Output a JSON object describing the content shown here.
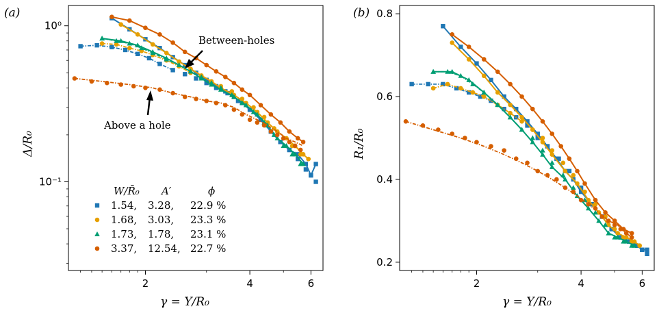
{
  "panel_a_label": "(a)",
  "panel_b_label": "(b)",
  "legend_header": {
    "w": "W/R̄₀",
    "a": "A′",
    "phi": "ϕ"
  },
  "annotations": {
    "between": "Between-holes",
    "above": "Above a hole"
  },
  "chart_data": [
    {
      "type": "scatter",
      "panel": "(a)",
      "xlabel": "γ = Y/R₀",
      "ylabel": "Δ/R₀",
      "xscale": "log",
      "yscale": "log",
      "xlim": [
        1.2,
        6.5
      ],
      "ylim": [
        0.027,
        1.35
      ],
      "xticks": [
        {
          "v": 2,
          "label": "2"
        },
        {
          "v": 4,
          "label": "4"
        },
        {
          "v": 6,
          "label": "6"
        }
      ],
      "yticks": [
        {
          "v": 1,
          "label": "10⁰"
        },
        {
          "v": 0.1,
          "label": "10⁻¹"
        }
      ],
      "annotations": [
        {
          "text": "Between-holes",
          "x": 2.6,
          "y": 0.62
        },
        {
          "text": "Above a hole",
          "x": 2.05,
          "y": 0.39
        }
      ],
      "legend_position": "lower-left",
      "series": [
        {
          "name": "1.54, 3.28, 22.9 %",
          "color": "#1f77b4",
          "marker": "square",
          "x": [
            1.3,
            1.45,
            1.6,
            1.75,
            1.9,
            2.05,
            2.2,
            2.4,
            2.6,
            2.8,
            3.0,
            3.2,
            3.45,
            3.7,
            4.0,
            4.3,
            4.6,
            4.9,
            5.2,
            5.5,
            5.8,
            6.0,
            6.2
          ],
          "y": [
            0.74,
            0.75,
            0.73,
            0.7,
            0.66,
            0.62,
            0.57,
            0.52,
            0.49,
            0.46,
            0.43,
            0.4,
            0.37,
            0.33,
            0.29,
            0.25,
            0.21,
            0.18,
            0.16,
            0.14,
            0.12,
            0.11,
            0.1
          ],
          "line_x": [
            1.6,
            1.8,
            2.0,
            2.2,
            2.4,
            2.6,
            2.8,
            3.0,
            3.2,
            3.4,
            3.6,
            3.8,
            4.0,
            4.3,
            4.6,
            4.9,
            5.2,
            5.5,
            5.8,
            6.0,
            6.2
          ],
          "line_y": [
            1.12,
            0.95,
            0.82,
            0.72,
            0.63,
            0.56,
            0.5,
            0.45,
            0.41,
            0.38,
            0.35,
            0.32,
            0.29,
            0.25,
            0.21,
            0.18,
            0.16,
            0.15,
            0.13,
            0.11,
            0.13
          ]
        },
        {
          "name": "1.68, 3.03, 23.3 %",
          "color": "#e69f00",
          "marker": "circle",
          "x": [
            1.5,
            1.65,
            1.8,
            1.95,
            2.1,
            2.3,
            2.5,
            2.7,
            2.9,
            3.1,
            3.3,
            3.55,
            3.8,
            4.1,
            4.4,
            4.7,
            5.0,
            5.3,
            5.6,
            5.9
          ],
          "y": [
            0.77,
            0.76,
            0.72,
            0.69,
            0.65,
            0.6,
            0.55,
            0.5,
            0.47,
            0.44,
            0.41,
            0.38,
            0.34,
            0.3,
            0.26,
            0.22,
            0.19,
            0.17,
            0.15,
            0.14
          ],
          "line_x": [
            1.7,
            1.9,
            2.1,
            2.3,
            2.5,
            2.7,
            2.9,
            3.1,
            3.3,
            3.6,
            3.9,
            4.2,
            4.5,
            4.8,
            5.1,
            5.4,
            5.7,
            5.9
          ],
          "line_y": [
            1.02,
            0.88,
            0.76,
            0.67,
            0.59,
            0.53,
            0.48,
            0.44,
            0.4,
            0.36,
            0.32,
            0.28,
            0.24,
            0.21,
            0.19,
            0.17,
            0.15,
            0.14
          ]
        },
        {
          "name": "1.73, 1.78, 23.1 %",
          "color": "#009e73",
          "marker": "triangle",
          "x": [
            1.5,
            1.65,
            1.8,
            1.95,
            2.1,
            2.3,
            2.5,
            2.7,
            2.9,
            3.1,
            3.3,
            3.55,
            3.8,
            4.1,
            4.4,
            4.7,
            5.0,
            5.3,
            5.6
          ],
          "y": [
            0.83,
            0.8,
            0.77,
            0.72,
            0.67,
            0.61,
            0.56,
            0.51,
            0.47,
            0.43,
            0.4,
            0.36,
            0.32,
            0.28,
            0.24,
            0.2,
            0.17,
            0.15,
            0.13
          ],
          "line_x": [
            1.5,
            1.7,
            1.9,
            2.1,
            2.3,
            2.5,
            2.7,
            2.9,
            3.1,
            3.3,
            3.6,
            3.9,
            4.2,
            4.5,
            4.8,
            5.1,
            5.4,
            5.7
          ],
          "line_y": [
            0.83,
            0.8,
            0.75,
            0.68,
            0.62,
            0.56,
            0.51,
            0.46,
            0.42,
            0.39,
            0.35,
            0.31,
            0.27,
            0.23,
            0.19,
            0.17,
            0.15,
            0.13
          ]
        },
        {
          "name": "3.37, 12.54, 22.7 %",
          "color": "#d55e00",
          "marker": "circle",
          "x": [
            1.25,
            1.4,
            1.55,
            1.7,
            1.85,
            2.0,
            2.2,
            2.4,
            2.6,
            2.8,
            3.0,
            3.2,
            3.4,
            3.6,
            3.8,
            4.0,
            4.2,
            4.4,
            4.6,
            4.8,
            5.0,
            5.2,
            5.4,
            5.6
          ],
          "y": [
            0.46,
            0.44,
            0.43,
            0.42,
            0.41,
            0.4,
            0.39,
            0.37,
            0.35,
            0.34,
            0.33,
            0.32,
            0.31,
            0.29,
            0.27,
            0.25,
            0.24,
            0.23,
            0.21,
            0.2,
            0.19,
            0.18,
            0.17,
            0.16
          ],
          "line_x": [
            1.6,
            1.8,
            2.0,
            2.2,
            2.4,
            2.6,
            2.8,
            3.0,
            3.2,
            3.4,
            3.6,
            3.8,
            4.0,
            4.3,
            4.6,
            4.9,
            5.2,
            5.5,
            5.7
          ],
          "line_y": [
            1.14,
            1.08,
            0.97,
            0.88,
            0.78,
            0.68,
            0.62,
            0.56,
            0.51,
            0.47,
            0.43,
            0.39,
            0.36,
            0.31,
            0.27,
            0.24,
            0.21,
            0.19,
            0.18
          ],
          "line2_x": [
            1.25,
            1.5,
            1.8,
            2.1,
            2.4,
            2.7,
            3.0,
            3.3,
            3.6,
            3.9,
            4.2,
            4.5,
            4.8,
            5.1,
            5.4,
            5.7
          ],
          "line2_y": [
            0.46,
            0.44,
            0.42,
            0.4,
            0.37,
            0.35,
            0.33,
            0.32,
            0.3,
            0.27,
            0.25,
            0.23,
            0.21,
            0.19,
            0.18,
            0.17
          ]
        }
      ]
    },
    {
      "type": "scatter",
      "panel": "(b)",
      "xlabel": "γ = Y/R₀",
      "ylabel": "R₁/R₀",
      "xscale": "log",
      "yscale": "linear",
      "xlim": [
        1.2,
        6.5
      ],
      "ylim": [
        0.18,
        0.82
      ],
      "xticks": [
        {
          "v": 2,
          "label": "2"
        },
        {
          "v": 4,
          "label": "4"
        },
        {
          "v": 6,
          "label": "6"
        }
      ],
      "yticks": [
        {
          "v": 0.2,
          "label": "0.2"
        },
        {
          "v": 0.4,
          "label": "0.4"
        },
        {
          "v": 0.6,
          "label": "0.6"
        },
        {
          "v": 0.8,
          "label": "0.8"
        }
      ],
      "series": [
        {
          "name": "1.54, 3.28, 22.9 %",
          "color": "#1f77b4",
          "marker": "square",
          "x": [
            1.3,
            1.45,
            1.6,
            1.75,
            1.9,
            2.05,
            2.2,
            2.4,
            2.6,
            2.8,
            3.0,
            3.2,
            3.45,
            3.7,
            4.0,
            4.3,
            4.6,
            4.9,
            5.2,
            5.5,
            5.8,
            6.0,
            6.2
          ],
          "y": [
            0.63,
            0.63,
            0.63,
            0.62,
            0.61,
            0.6,
            0.59,
            0.57,
            0.55,
            0.53,
            0.5,
            0.48,
            0.45,
            0.42,
            0.38,
            0.34,
            0.31,
            0.28,
            0.26,
            0.25,
            0.24,
            0.23,
            0.22
          ],
          "line_x": [
            1.6,
            1.8,
            2.0,
            2.2,
            2.4,
            2.6,
            2.8,
            3.0,
            3.2,
            3.4,
            3.6,
            3.8,
            4.0,
            4.3,
            4.6,
            4.9,
            5.2,
            5.5,
            5.8,
            6.0,
            6.2
          ],
          "line_y": [
            0.77,
            0.72,
            0.68,
            0.64,
            0.6,
            0.57,
            0.54,
            0.51,
            0.48,
            0.45,
            0.42,
            0.4,
            0.37,
            0.34,
            0.31,
            0.28,
            0.26,
            0.25,
            0.24,
            0.23,
            0.23
          ]
        },
        {
          "name": "1.68, 3.03, 23.3 %",
          "color": "#e69f00",
          "marker": "circle",
          "x": [
            1.5,
            1.65,
            1.8,
            1.95,
            2.1,
            2.3,
            2.5,
            2.7,
            2.9,
            3.1,
            3.3,
            3.55,
            3.8,
            4.1,
            4.4,
            4.7,
            5.0,
            5.3,
            5.6,
            5.9
          ],
          "y": [
            0.62,
            0.63,
            0.62,
            0.61,
            0.6,
            0.58,
            0.56,
            0.54,
            0.52,
            0.5,
            0.47,
            0.44,
            0.41,
            0.37,
            0.34,
            0.31,
            0.28,
            0.26,
            0.25,
            0.24
          ],
          "line_x": [
            1.7,
            1.9,
            2.1,
            2.3,
            2.5,
            2.7,
            2.9,
            3.1,
            3.3,
            3.6,
            3.9,
            4.2,
            4.5,
            4.8,
            5.1,
            5.4,
            5.7,
            5.9
          ],
          "line_y": [
            0.73,
            0.69,
            0.65,
            0.61,
            0.58,
            0.55,
            0.52,
            0.49,
            0.46,
            0.42,
            0.39,
            0.35,
            0.32,
            0.29,
            0.27,
            0.26,
            0.25,
            0.24
          ]
        },
        {
          "name": "1.73, 1.78, 23.1 %",
          "color": "#009e73",
          "marker": "triangle",
          "x": [
            1.5,
            1.65,
            1.8,
            1.95,
            2.1,
            2.3,
            2.5,
            2.7,
            2.9,
            3.1,
            3.3,
            3.55,
            3.8,
            4.1,
            4.4,
            4.7,
            5.0,
            5.3,
            5.6
          ],
          "y": [
            0.66,
            0.66,
            0.65,
            0.63,
            0.61,
            0.58,
            0.55,
            0.52,
            0.5,
            0.47,
            0.44,
            0.41,
            0.38,
            0.35,
            0.32,
            0.29,
            0.26,
            0.25,
            0.24
          ],
          "line_x": [
            1.5,
            1.7,
            1.9,
            2.1,
            2.3,
            2.5,
            2.7,
            2.9,
            3.1,
            3.3,
            3.6,
            3.9,
            4.2,
            4.5,
            4.8,
            5.1,
            5.4,
            5.7
          ],
          "line_y": [
            0.66,
            0.66,
            0.64,
            0.61,
            0.58,
            0.55,
            0.52,
            0.49,
            0.46,
            0.43,
            0.4,
            0.36,
            0.33,
            0.3,
            0.27,
            0.26,
            0.25,
            0.24
          ]
        },
        {
          "name": "3.37, 12.54, 22.7 %",
          "color": "#d55e00",
          "marker": "circle",
          "x": [
            1.25,
            1.4,
            1.55,
            1.7,
            1.85,
            2.0,
            2.2,
            2.4,
            2.6,
            2.8,
            3.0,
            3.2,
            3.4,
            3.6,
            3.8,
            4.0,
            4.2,
            4.4,
            4.6,
            4.8,
            5.0,
            5.2,
            5.4,
            5.6
          ],
          "y": [
            0.54,
            0.53,
            0.52,
            0.51,
            0.5,
            0.49,
            0.48,
            0.47,
            0.45,
            0.44,
            0.42,
            0.41,
            0.4,
            0.38,
            0.37,
            0.35,
            0.34,
            0.33,
            0.31,
            0.3,
            0.29,
            0.28,
            0.27,
            0.26
          ],
          "line_x": [
            1.7,
            1.9,
            2.1,
            2.3,
            2.5,
            2.7,
            2.9,
            3.1,
            3.3,
            3.5,
            3.7,
            3.9,
            4.1,
            4.4,
            4.7,
            5.0,
            5.3,
            5.6
          ],
          "line_y": [
            0.75,
            0.72,
            0.69,
            0.66,
            0.63,
            0.6,
            0.57,
            0.54,
            0.51,
            0.48,
            0.45,
            0.42,
            0.39,
            0.35,
            0.32,
            0.3,
            0.28,
            0.27
          ],
          "line2_x": [
            1.25,
            1.5,
            1.8,
            2.1,
            2.4,
            2.7,
            3.0,
            3.3,
            3.6,
            3.9,
            4.2,
            4.5,
            4.8,
            5.1,
            5.4,
            5.6
          ],
          "line2_y": [
            0.54,
            0.52,
            0.5,
            0.48,
            0.46,
            0.44,
            0.42,
            0.4,
            0.38,
            0.36,
            0.34,
            0.32,
            0.3,
            0.29,
            0.27,
            0.26
          ]
        }
      ]
    }
  ]
}
